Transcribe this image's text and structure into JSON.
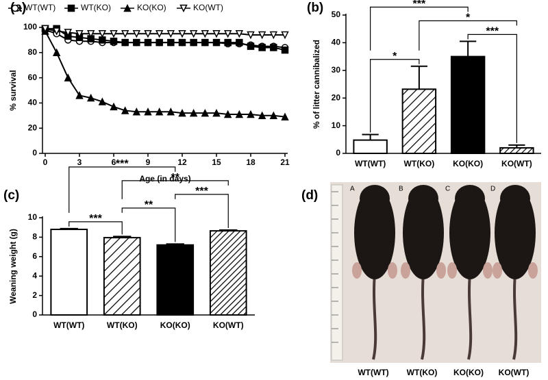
{
  "chart_data": [
    {
      "type": "line",
      "panel": "(a)",
      "xlabel": "Age (in days)",
      "ylabel": "% survival",
      "x": [
        0,
        1,
        2,
        3,
        4,
        5,
        6,
        7,
        8,
        9,
        10,
        11,
        12,
        13,
        14,
        15,
        16,
        17,
        18,
        19,
        20,
        21
      ],
      "xlim": [
        0,
        21
      ],
      "xticks": [
        0,
        3,
        6,
        9,
        12,
        15,
        18,
        21
      ],
      "ylim": [
        0,
        100
      ],
      "yticks": [
        0,
        20,
        40,
        60,
        80,
        100
      ],
      "series": [
        {
          "name": "WT(WT)",
          "color": "#000000",
          "marker": "circle-open",
          "values": [
            98,
            95,
            90,
            89,
            89,
            88,
            88,
            88,
            88,
            88,
            88,
            88,
            88,
            88,
            88,
            88,
            87,
            87,
            86,
            85,
            85,
            84
          ]
        },
        {
          "name": "WT(KO)",
          "color": "#000000",
          "marker": "square",
          "values": [
            99,
            99,
            93,
            92,
            91,
            90,
            89,
            88,
            88,
            88,
            88,
            88,
            88,
            88,
            88,
            88,
            88,
            88,
            85,
            84,
            84,
            82
          ]
        },
        {
          "name": "KO(KO)",
          "color": "#000000",
          "marker": "triangle",
          "values": [
            97,
            80,
            60,
            46,
            44,
            41,
            37,
            34,
            33,
            33,
            33,
            33,
            32,
            32,
            32,
            32,
            31,
            31,
            31,
            30,
            30,
            29
          ]
        },
        {
          "name": "KO(WT)",
          "color": "#000000",
          "marker": "triangle-down-open",
          "values": [
            99,
            97,
            96,
            95,
            95,
            95,
            95,
            95,
            95,
            95,
            95,
            95,
            95,
            95,
            95,
            95,
            95,
            95,
            94,
            94,
            94,
            94
          ]
        }
      ]
    },
    {
      "type": "bar",
      "panel": "(b)",
      "ylabel": "% of litter cannibalized",
      "categories": [
        "WT(WT)",
        "WT(KO)",
        "KO(KO)",
        "KO(WT)"
      ],
      "values": [
        4.8,
        23.2,
        35,
        2
      ],
      "errors": [
        2,
        8.3,
        5.5,
        1
      ],
      "fills": [
        "white",
        "hatch",
        "black",
        "hatch-dense"
      ],
      "ylim": [
        0,
        50
      ],
      "yticks": [
        0,
        10,
        20,
        30,
        40,
        50
      ],
      "significance": [
        {
          "from": 0,
          "to": 1,
          "label": "*"
        },
        {
          "from": 2,
          "to": 3,
          "label": "***"
        },
        {
          "from": 1,
          "to": 3,
          "label": "*"
        },
        {
          "from": 0,
          "to": 2,
          "label": "***"
        }
      ]
    },
    {
      "type": "bar",
      "panel": "(c)",
      "ylabel": "Weaning weight (g)",
      "categories": [
        "WT(WT)",
        "WT(KO)",
        "KO(KO)",
        "KO(WT)"
      ],
      "values": [
        8.8,
        7.95,
        7.2,
        8.65
      ],
      "errors": [
        0.08,
        0.12,
        0.1,
        0.08
      ],
      "fills": [
        "white",
        "hatch",
        "black",
        "hatch-dense"
      ],
      "ylim": [
        0,
        10
      ],
      "yticks": [
        0,
        2,
        4,
        6,
        8,
        10
      ],
      "significance": [
        {
          "from": 0,
          "to": 1,
          "label": "***"
        },
        {
          "from": 1,
          "to": 2,
          "label": "**"
        },
        {
          "from": 2,
          "to": 3,
          "label": "***"
        },
        {
          "from": 1,
          "to": 3,
          "label": "**"
        },
        {
          "from": 0,
          "to": 2,
          "label": "***"
        }
      ]
    }
  ],
  "photo": {
    "panel": "(d)",
    "letters": [
      "A",
      "B",
      "C",
      "D"
    ],
    "captions": [
      "WT(WT)",
      "WT(KO)",
      "KO(KO)",
      "KO(WT)"
    ]
  }
}
